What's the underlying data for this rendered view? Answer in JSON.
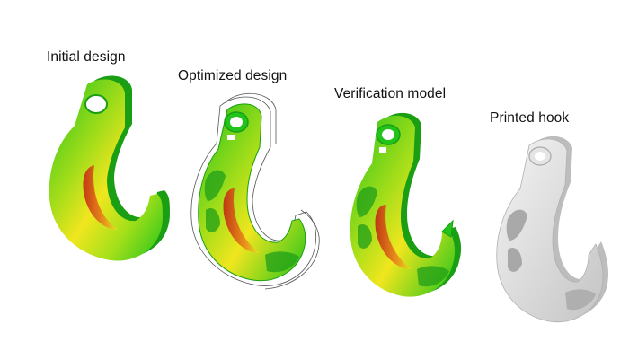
{
  "stages": [
    {
      "label": "Initial design"
    },
    {
      "label": "Optimized design"
    },
    {
      "label": "Verification model"
    },
    {
      "label": "Printed hook"
    }
  ],
  "colors": {
    "background": "#ffffff",
    "low_stress": "#22c41a",
    "mid_stress": "#f0e61e",
    "high_stress": "#c21a12",
    "printed_material": "#e6e6e6"
  }
}
